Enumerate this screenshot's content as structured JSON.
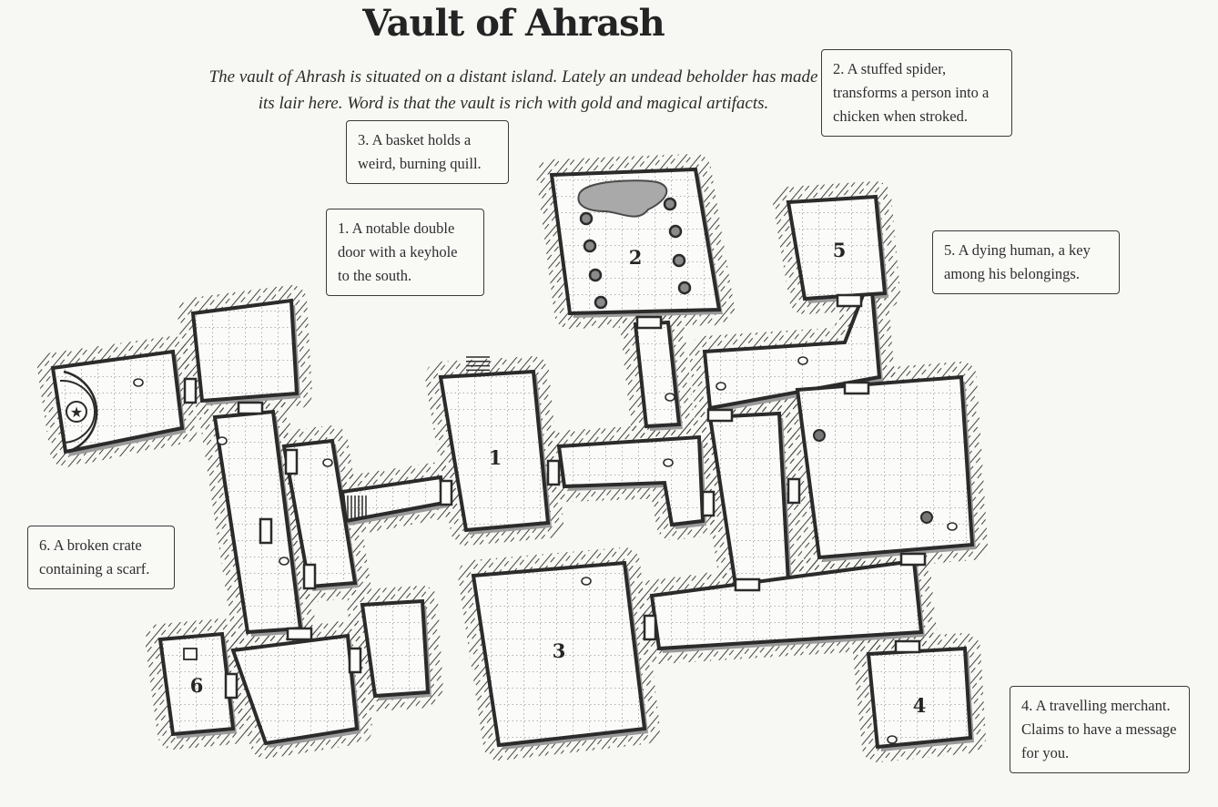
{
  "title": "Vault of Ahrash",
  "intro": "The vault of Ahrash is situated on a distant island. Lately an undead beholder has made its lair here. Word is that the vault is rich with gold and magical artifacts.",
  "notes": [
    {
      "text": "1. A notable double door with a keyhole to the south."
    },
    {
      "text": "2. A stuffed spider, transforms a person into a chicken when stroked."
    },
    {
      "text": "3. A basket holds a weird, burning quill."
    },
    {
      "text": "4. A travelling merchant. Claims to have a message for you."
    },
    {
      "text": "5. A dying human, a key among his belongings."
    },
    {
      "text": "6. A broken crate containing a scarf."
    }
  ],
  "room_numbers": [
    "1",
    "2",
    "3",
    "4",
    "5",
    "6"
  ],
  "colors": {
    "background": "#f7f7f3",
    "floor": "#fbfbf9",
    "wall": "#2b2b2b",
    "hatch": "#4a4a4a",
    "shadow": "#9a9a9a",
    "water": "#a9a9a9"
  }
}
